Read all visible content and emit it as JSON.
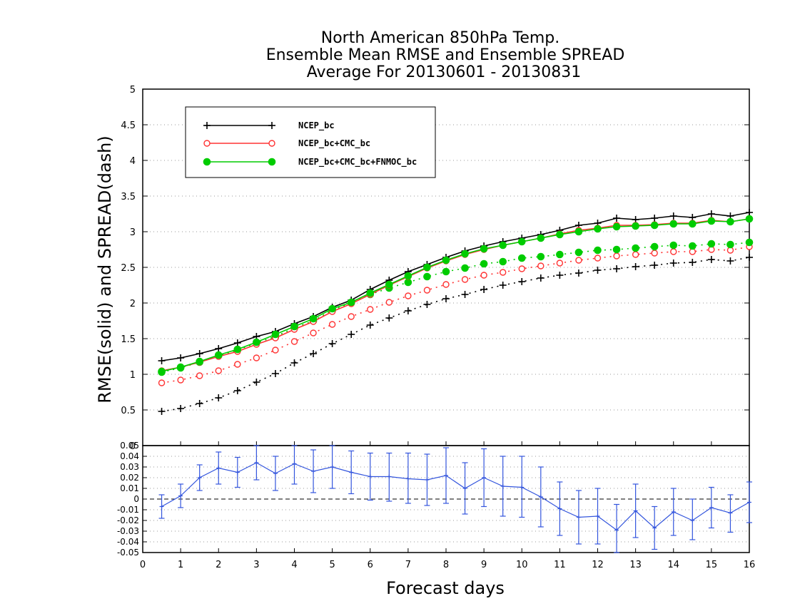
{
  "chart_data": [
    {
      "type": "line",
      "title_lines": [
        "North American 850hPa Temp.",
        "Ensemble Mean RMSE and Ensemble SPREAD",
        "Average For 20130601 - 20130831"
      ],
      "xlabel": "Forecast days",
      "ylabel": "RMSE(solid) and SPREAD(dash)",
      "xlim": [
        0,
        16
      ],
      "ylim": [
        0,
        5
      ],
      "x_ticks": [
        "0",
        "1",
        "2",
        "3",
        "4",
        "5",
        "6",
        "7",
        "8",
        "9",
        "10",
        "11",
        "12",
        "13",
        "14",
        "15",
        "16"
      ],
      "y_ticks": [
        "0",
        "0.5",
        "1",
        "1.5",
        "2",
        "2.5",
        "3",
        "3.5",
        "4",
        "4.5",
        "5"
      ],
      "grid": true,
      "legend_position": "top-left",
      "x": [
        0.5,
        1,
        1.5,
        2,
        2.5,
        3,
        3.5,
        4,
        4.5,
        5,
        5.5,
        6,
        6.5,
        7,
        7.5,
        8,
        8.5,
        9,
        9.5,
        10,
        10.5,
        11,
        11.5,
        12,
        12.5,
        13,
        13.5,
        14,
        14.5,
        15,
        15.5,
        16
      ],
      "series": [
        {
          "name": "NCEP_bc",
          "color": "#000000",
          "marker": "plus",
          "rmse": [
            1.19,
            1.23,
            1.29,
            1.36,
            1.44,
            1.53,
            1.6,
            1.71,
            1.81,
            1.94,
            2.04,
            2.19,
            2.32,
            2.44,
            2.54,
            2.64,
            2.73,
            2.8,
            2.86,
            2.91,
            2.96,
            3.02,
            3.09,
            3.12,
            3.19,
            3.17,
            3.19,
            3.22,
            3.2,
            3.25,
            3.22,
            3.27
          ],
          "spread": [
            0.48,
            0.52,
            0.59,
            0.67,
            0.77,
            0.89,
            1.01,
            1.16,
            1.29,
            1.43,
            1.56,
            1.69,
            1.79,
            1.89,
            1.98,
            2.06,
            2.12,
            2.19,
            2.25,
            2.3,
            2.35,
            2.39,
            2.42,
            2.46,
            2.48,
            2.51,
            2.53,
            2.56,
            2.57,
            2.61,
            2.59,
            2.64
          ]
        },
        {
          "name": "NCEP_bc+CMC_bc",
          "color": "#ff3333",
          "marker": "open-circle",
          "rmse": [
            1.05,
            1.1,
            1.17,
            1.25,
            1.32,
            1.42,
            1.51,
            1.63,
            1.74,
            1.88,
            1.99,
            2.12,
            2.25,
            2.37,
            2.49,
            2.59,
            2.68,
            2.75,
            2.81,
            2.86,
            2.91,
            2.97,
            3.02,
            3.05,
            3.09,
            3.09,
            3.1,
            3.12,
            3.12,
            3.16,
            3.14,
            3.18
          ],
          "spread": [
            0.88,
            0.92,
            0.98,
            1.05,
            1.14,
            1.23,
            1.34,
            1.46,
            1.58,
            1.7,
            1.81,
            1.91,
            2.01,
            2.1,
            2.18,
            2.26,
            2.33,
            2.39,
            2.43,
            2.48,
            2.52,
            2.56,
            2.6,
            2.63,
            2.66,
            2.68,
            2.7,
            2.72,
            2.72,
            2.75,
            2.74,
            2.79
          ]
        },
        {
          "name": "NCEP_bc+CMC_bc+FNMOC_bc",
          "color": "#00cc00",
          "marker": "filled-circle",
          "rmse": [
            1.04,
            1.1,
            1.18,
            1.27,
            1.35,
            1.45,
            1.56,
            1.67,
            1.78,
            1.92,
            2.01,
            2.14,
            2.26,
            2.38,
            2.5,
            2.6,
            2.69,
            2.76,
            2.81,
            2.86,
            2.91,
            2.96,
            3.0,
            3.04,
            3.07,
            3.08,
            3.09,
            3.11,
            3.11,
            3.15,
            3.14,
            3.18
          ],
          "spread": [
            1.03,
            1.09,
            1.17,
            1.26,
            1.34,
            1.44,
            1.53,
            1.65,
            1.75,
            1.9,
            2.0,
            2.12,
            2.21,
            2.29,
            2.37,
            2.44,
            2.49,
            2.55,
            2.58,
            2.63,
            2.65,
            2.68,
            2.71,
            2.74,
            2.75,
            2.77,
            2.79,
            2.81,
            2.8,
            2.83,
            2.82,
            2.85
          ]
        }
      ]
    },
    {
      "type": "line",
      "xlim": [
        0,
        16
      ],
      "ylim": [
        -0.05,
        0.05
      ],
      "y_ticks": [
        "-0.05",
        "-0.04",
        "-0.03",
        "-0.02",
        "-0.01",
        "0",
        "0.01",
        "0.02",
        "0.03",
        "0.04",
        "0.05"
      ],
      "grid": true,
      "reference_line": 0,
      "x": [
        0.5,
        1,
        1.5,
        2,
        2.5,
        3,
        3.5,
        4,
        4.5,
        5,
        5.5,
        6,
        6.5,
        7,
        7.5,
        8,
        8.5,
        9,
        9.5,
        10,
        10.5,
        11,
        11.5,
        12,
        12.5,
        13,
        13.5,
        14,
        14.5,
        15,
        15.5,
        16
      ],
      "series": [
        {
          "color": "#3355dd",
          "values": [
            -0.007,
            0.003,
            0.02,
            0.029,
            0.025,
            0.034,
            0.024,
            0.033,
            0.026,
            0.03,
            0.025,
            0.021,
            0.021,
            0.019,
            0.018,
            0.022,
            0.01,
            0.02,
            0.012,
            0.011,
            0.002,
            -0.009,
            -0.017,
            -0.016,
            -0.029,
            -0.011,
            -0.027,
            -0.012,
            -0.02,
            -0.008,
            -0.013,
            -0.003
          ],
          "err_upper": [
            0.004,
            0.014,
            0.032,
            0.044,
            0.039,
            0.05,
            0.04,
            0.051,
            0.046,
            0.05,
            0.045,
            0.043,
            0.043,
            0.043,
            0.042,
            0.048,
            0.034,
            0.047,
            0.04,
            0.04,
            0.03,
            0.016,
            0.008,
            0.01,
            -0.005,
            0.014,
            -0.007,
            0.01,
            0.0,
            0.011,
            0.004,
            0.016
          ],
          "err_lower": [
            -0.018,
            -0.008,
            0.008,
            0.014,
            0.011,
            0.018,
            0.008,
            0.014,
            0.006,
            0.01,
            0.005,
            -0.001,
            -0.002,
            -0.004,
            -0.006,
            -0.004,
            -0.014,
            -0.007,
            -0.016,
            -0.017,
            -0.026,
            -0.034,
            -0.042,
            -0.042,
            -0.053,
            -0.036,
            -0.047,
            -0.034,
            -0.038,
            -0.027,
            -0.031,
            -0.022
          ]
        }
      ]
    }
  ]
}
